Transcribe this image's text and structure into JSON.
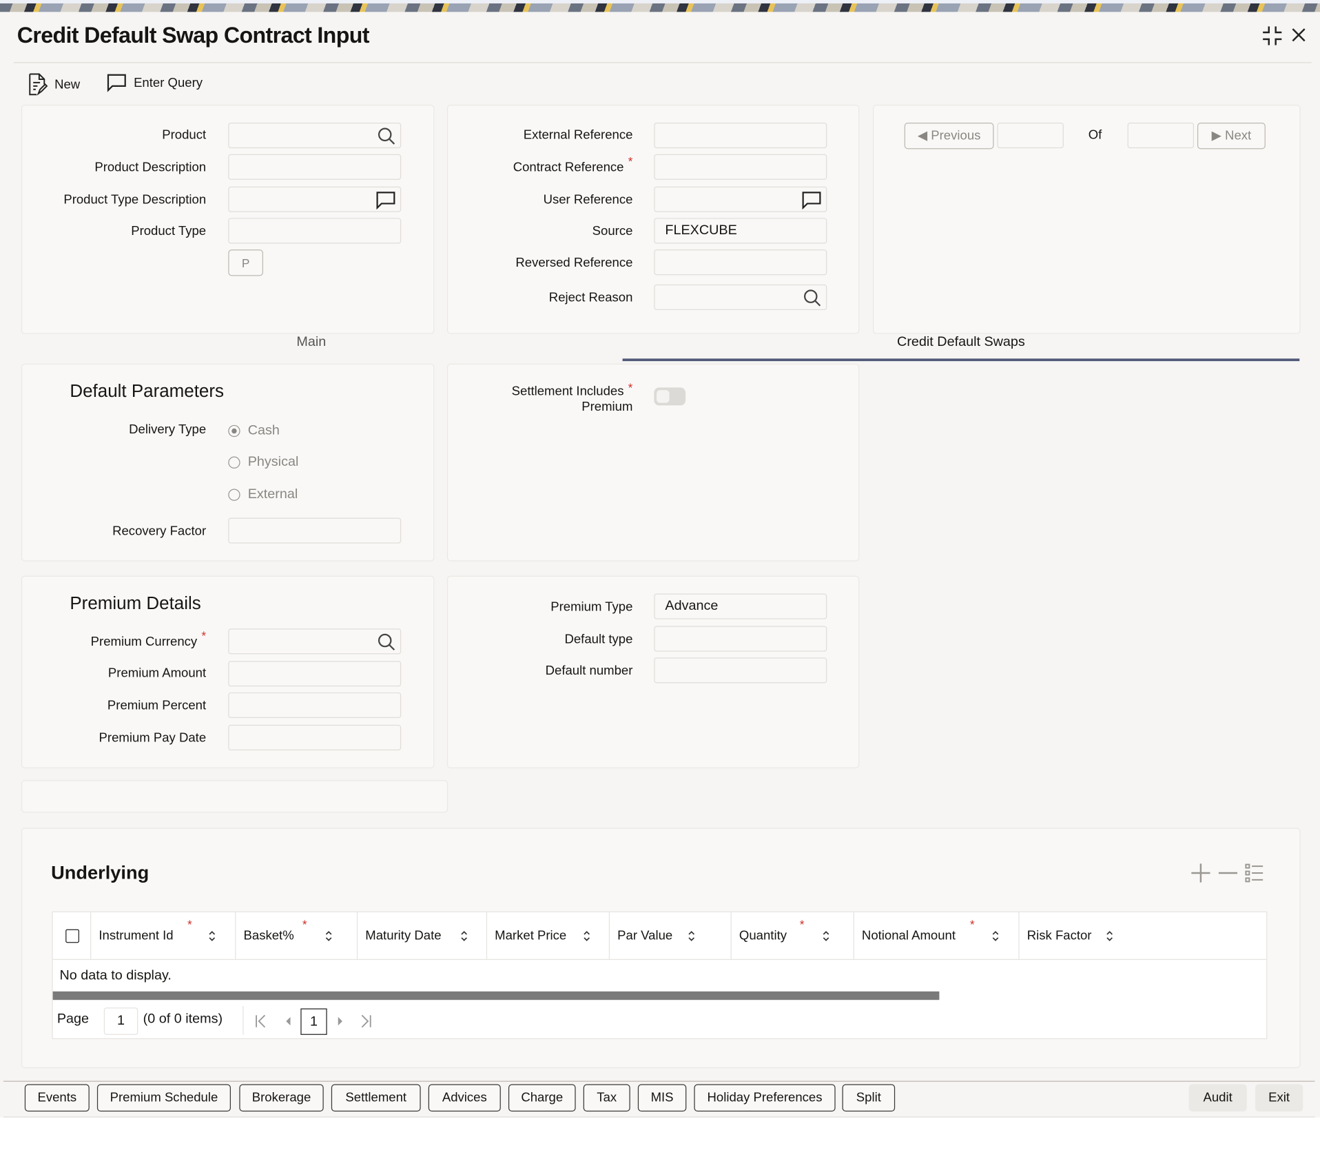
{
  "window": {
    "title": "Credit Default Swap Contract Input",
    "icons": [
      "maximize-icon",
      "close-icon"
    ]
  },
  "toolbar": {
    "new_label": "New",
    "enter_query_label": "Enter Query"
  },
  "header_left": {
    "product_label": "Product",
    "product_value": "",
    "product_description_label": "Product Description",
    "product_description_value": "",
    "product_type_description_label": "Product Type Description",
    "product_type_description_value": "",
    "product_type_label": "Product Type",
    "product_type_value": "",
    "p_button": "P"
  },
  "header_mid": {
    "external_reference_label": "External Reference",
    "external_reference_value": "",
    "contract_reference_label": "Contract Reference",
    "contract_reference_value": "",
    "user_reference_label": "User Reference",
    "user_reference_value": "",
    "source_label": "Source",
    "source_value": "FLEXCUBE",
    "reversed_reference_label": "Reversed Reference",
    "reversed_reference_value": "",
    "reject_reason_label": "Reject Reason",
    "reject_reason_value": ""
  },
  "navigation": {
    "previous_label": "Previous",
    "of_label": "Of",
    "next_label": "Next",
    "current": "",
    "total": ""
  },
  "tabs": [
    {
      "label": "Main",
      "active": false
    },
    {
      "label": "Credit Default Swaps",
      "active": true
    }
  ],
  "accent_color": "#4f5878",
  "default_parameters": {
    "title": "Default Parameters",
    "delivery_type_label": "Delivery Type",
    "delivery_options": [
      {
        "label": "Cash",
        "selected": true
      },
      {
        "label": "Physical",
        "selected": false
      },
      {
        "label": "External",
        "selected": false
      }
    ],
    "recovery_factor_label": "Recovery Factor",
    "recovery_factor_value": "",
    "settlement_includes_premium_label_1": "Settlement Includes",
    "settlement_includes_premium_label_2": "Premium",
    "settlement_includes_premium": false
  },
  "premium_details": {
    "title": "Premium Details",
    "premium_currency_label": "Premium Currency",
    "premium_currency_value": "",
    "premium_amount_label": "Premium Amount",
    "premium_amount_value": "",
    "premium_percent_label": "Premium Percent",
    "premium_percent_value": "",
    "premium_pay_date_label": "Premium Pay Date",
    "premium_pay_date_value": "",
    "premium_type_label": "Premium Type",
    "premium_type_value": "Advance",
    "default_type_label": "Default type",
    "default_type_value": "",
    "default_number_label": "Default number",
    "default_number_value": ""
  },
  "underlying": {
    "title": "Underlying",
    "columns": [
      "Instrument Id",
      "Basket%",
      "Maturity Date",
      "Market Price",
      "Par Value",
      "Quantity",
      "Notional Amount",
      "Risk Factor"
    ],
    "empty_text": "No data to display.",
    "page_label": "Page",
    "page_value": "1",
    "items_text": "(0 of 0 items)",
    "current_page": "1"
  },
  "footer": {
    "buttons": [
      "Events",
      "Premium Schedule",
      "Brokerage",
      "Settlement",
      "Advices",
      "Charge",
      "Tax",
      "MIS",
      "Holiday Preferences",
      "Split"
    ],
    "audit_label": "Audit",
    "exit_label": "Exit"
  }
}
